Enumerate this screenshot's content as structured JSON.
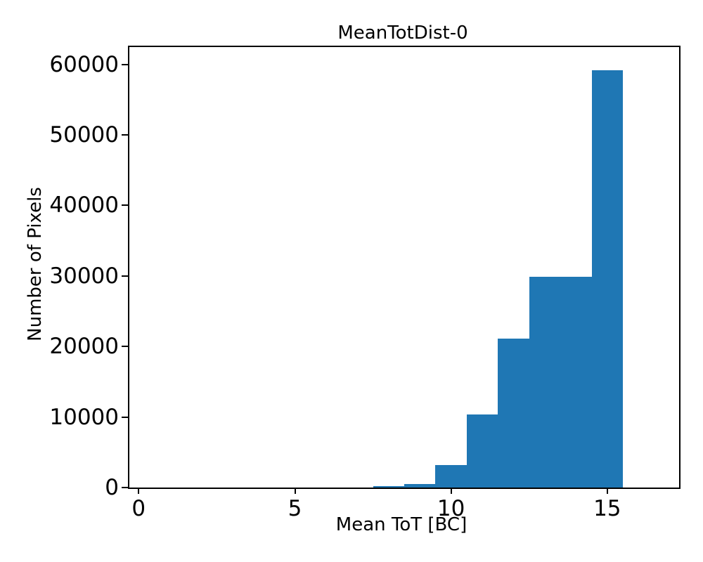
{
  "figure": {
    "background": "#ffffff",
    "text_color": "#000000",
    "spine_color": "#000000"
  },
  "chart_data": {
    "type": "bar",
    "subtype": "histogram",
    "title": "MeanTotDist-0",
    "xlabel": "Mean ToT [BC]",
    "ylabel": "Number of Pixels",
    "bar_color": "#1f77b4",
    "bin_edges": [
      0.5,
      1.5,
      2.5,
      3.5,
      4.5,
      5.5,
      6.5,
      7.5,
      8.5,
      9.5,
      10.5,
      11.5,
      12.5,
      13.5,
      14.5,
      15.5,
      16.5
    ],
    "counts": [
      0,
      0,
      0,
      0,
      0,
      0,
      0,
      200,
      530,
      3150,
      10400,
      21100,
      29850,
      29850,
      59200,
      0
    ],
    "xlim": [
      -0.3,
      17.3
    ],
    "ylim": [
      0,
      62450
    ],
    "xticks": [
      0,
      5,
      10,
      15
    ],
    "xtick_labels": [
      "0",
      "5",
      "10",
      "15"
    ],
    "yticks": [
      0,
      10000,
      20000,
      30000,
      40000,
      50000,
      60000
    ],
    "ytick_labels": [
      "0",
      "10000",
      "20000",
      "30000",
      "40000",
      "50000",
      "60000"
    ],
    "grid": false,
    "legend": false
  }
}
